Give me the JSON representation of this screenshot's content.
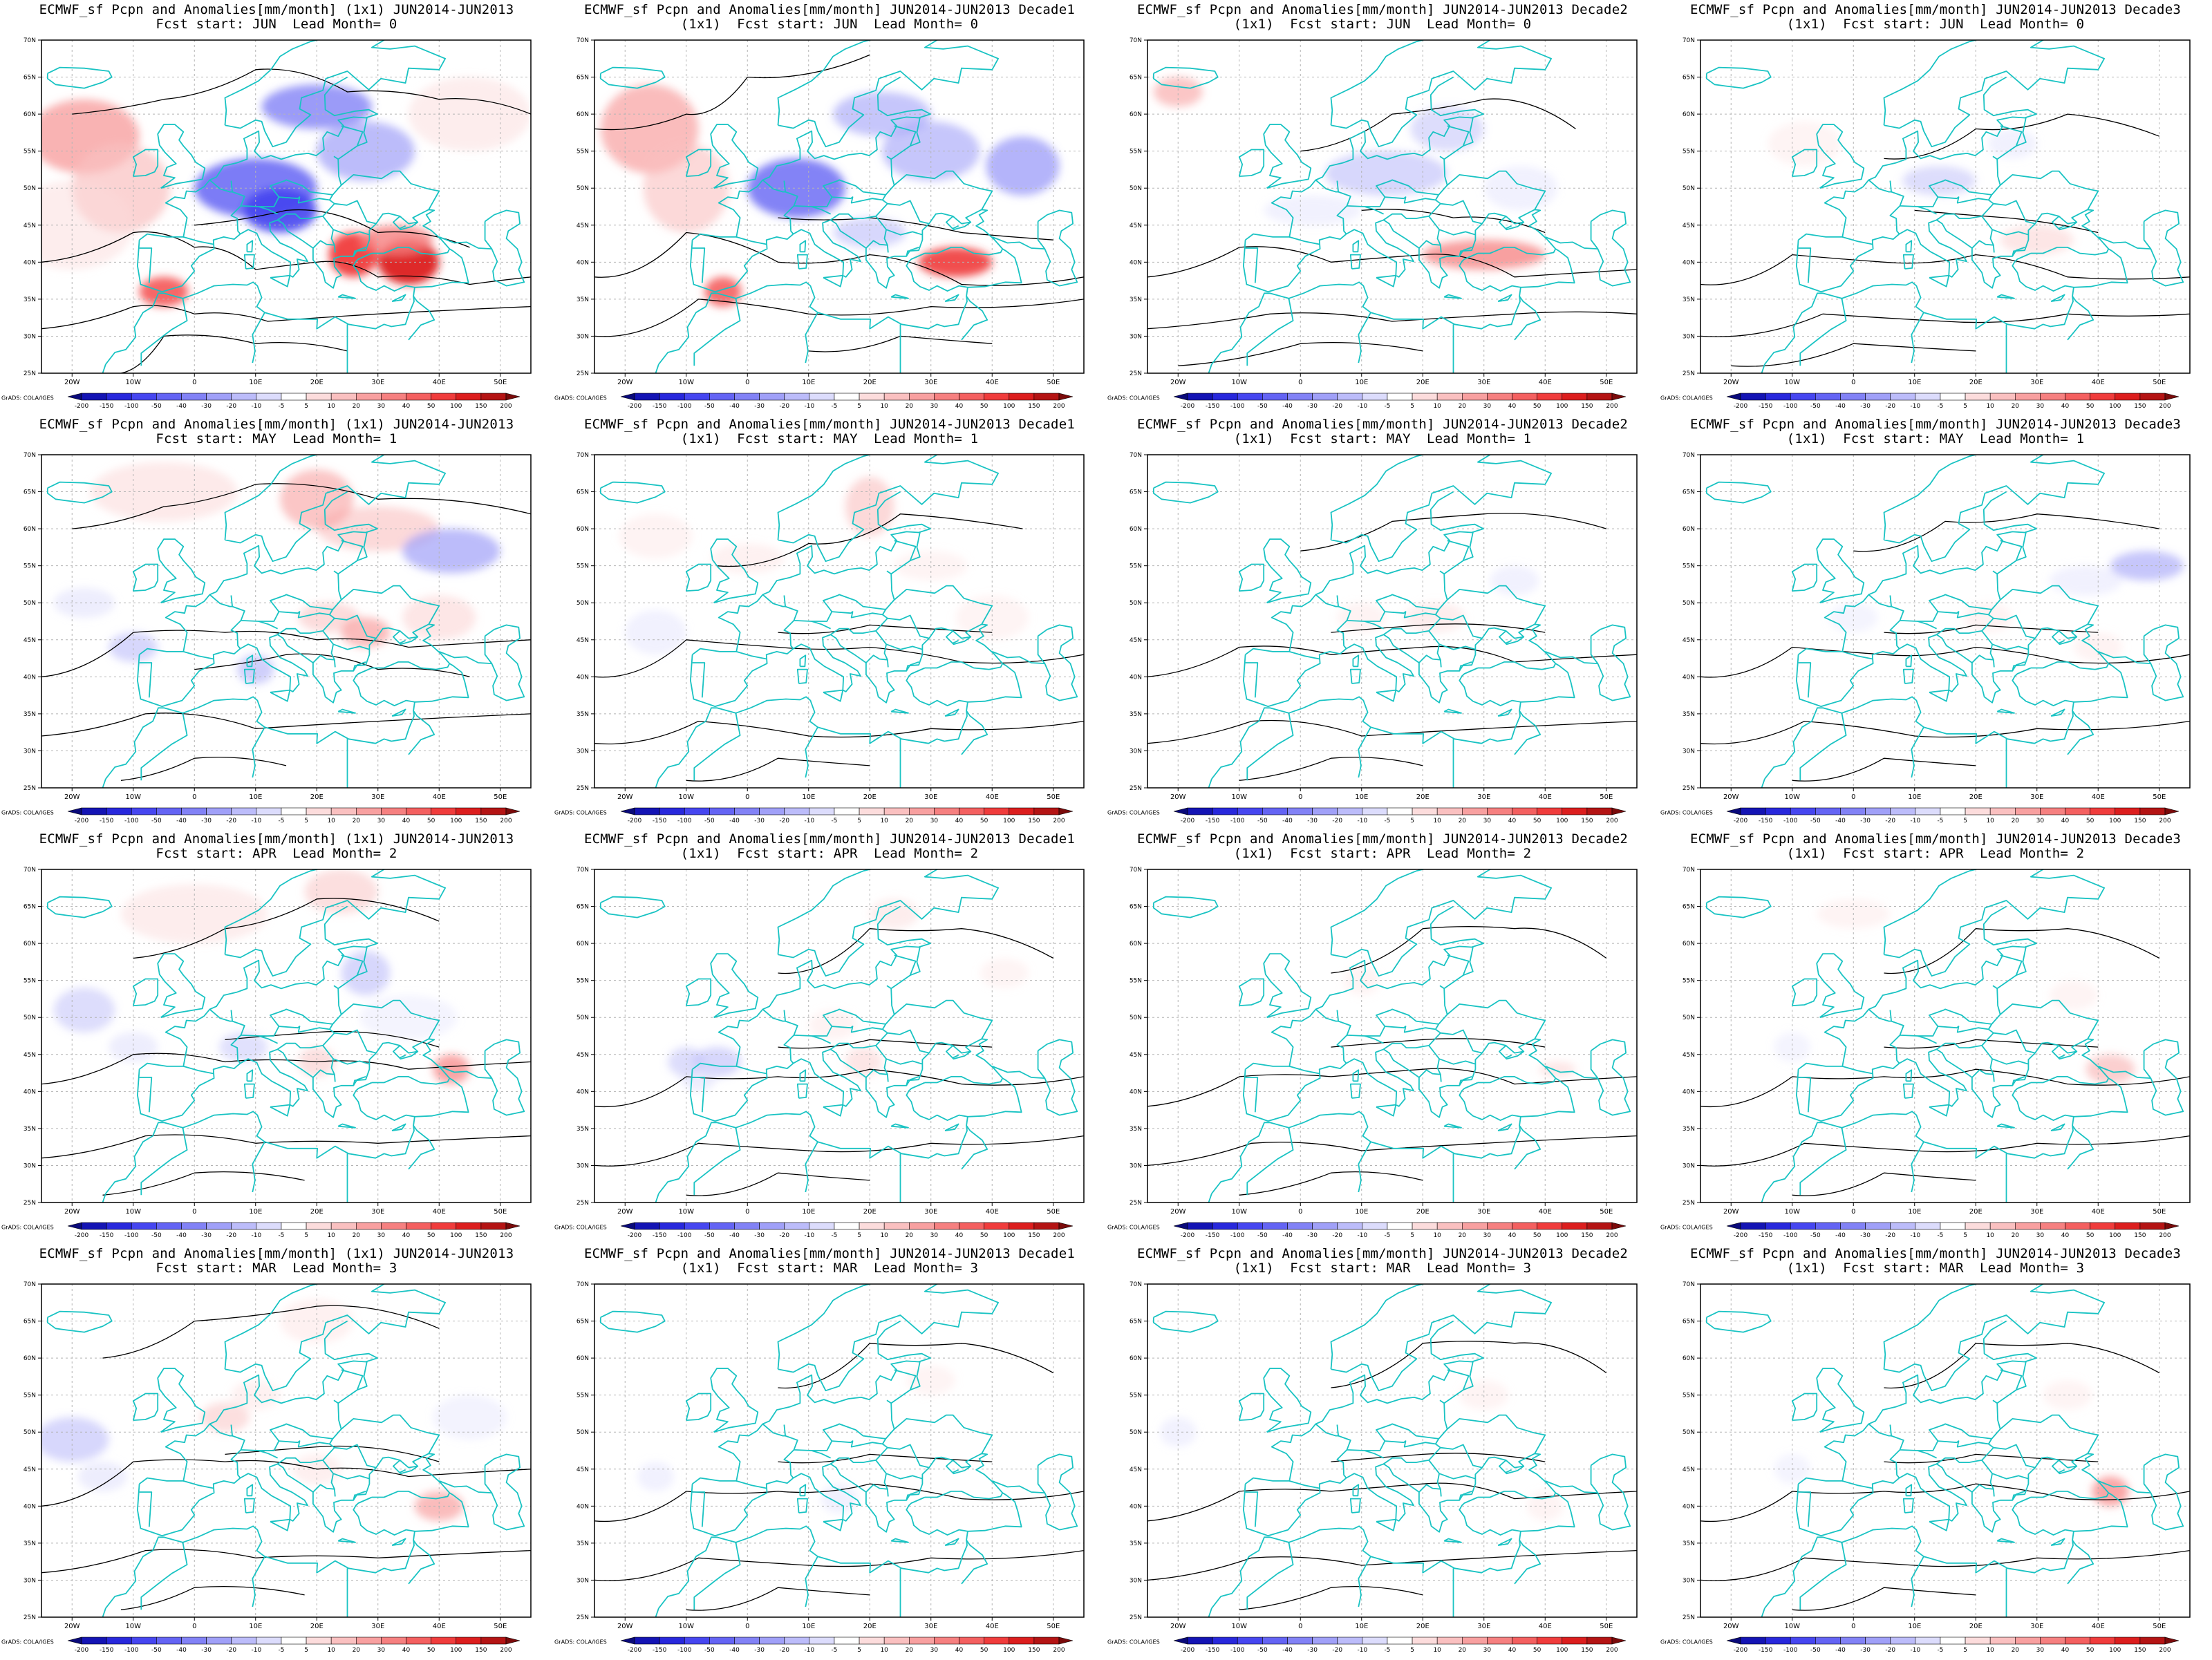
{
  "figure": {
    "title_prefix": "ECMWF_sf Pcpn and Anomalies[mm/month]",
    "period": "JUN2014-JUN2013",
    "grid": "(1x1)",
    "credit": "GrADS: COLA/IGES",
    "colorbar": {
      "labels": [
        "-200",
        "-150",
        "-100",
        "-50",
        "-40",
        "-30",
        "-20",
        "-10",
        "-5",
        "5",
        "10",
        "20",
        "30",
        "40",
        "50",
        "100",
        "150",
        "200"
      ],
      "colors": [
        "#0a0a7a",
        "#1414b4",
        "#2828dc",
        "#4646f0",
        "#6464f4",
        "#8282f6",
        "#a0a0f8",
        "#bcbcfa",
        "#dcdcfc",
        "#ffffff",
        "#fcdcdc",
        "#faC0c0",
        "#f8a0a0",
        "#f68080",
        "#f46060",
        "#f03c3c",
        "#dc1e1e",
        "#b41414",
        "#7a0a0a"
      ]
    },
    "lon_ticks": [
      "20W",
      "10W",
      "0",
      "10E",
      "20E",
      "30E",
      "40E",
      "50E"
    ],
    "lat_ticks": [
      "70N",
      "65N",
      "60N",
      "55N",
      "50N",
      "45N",
      "40N",
      "35N",
      "30N",
      "25N"
    ],
    "rows": [
      {
        "start": "JUN",
        "lead": "0"
      },
      {
        "start": "MAY",
        "lead": "1"
      },
      {
        "start": "APR",
        "lead": "2"
      },
      {
        "start": "MAR",
        "lead": "3"
      }
    ],
    "columns": [
      "",
      "Decade1",
      "Decade2",
      "Decade3"
    ],
    "panels": [
      {
        "line1": "ECMWF_sf Pcpn and Anomalies[mm/month] (1x1) JUN2014-JUN2013",
        "line2": "Fcst start: JUN  Lead Month= 0"
      },
      {
        "line1": "ECMWF_sf Pcpn and Anomalies[mm/month] JUN2014-JUN2013 Decade1",
        "line2": "(1x1)  Fcst start: JUN  Lead Month= 0"
      },
      {
        "line1": "ECMWF_sf Pcpn and Anomalies[mm/month] JUN2014-JUN2013 Decade2",
        "line2": "(1x1)  Fcst start: JUN  Lead Month= 0"
      },
      {
        "line1": "ECMWF_sf Pcpn and Anomalies[mm/month] JUN2014-JUN2013 Decade3",
        "line2": "(1x1)  Fcst start: JUN  Lead Month= 0"
      },
      {
        "line1": "ECMWF_sf Pcpn and Anomalies[mm/month] (1x1) JUN2014-JUN2013",
        "line2": "Fcst start: MAY  Lead Month= 1"
      },
      {
        "line1": "ECMWF_sf Pcpn and Anomalies[mm/month] JUN2014-JUN2013 Decade1",
        "line2": "(1x1)  Fcst start: MAY  Lead Month= 1"
      },
      {
        "line1": "ECMWF_sf Pcpn and Anomalies[mm/month] JUN2014-JUN2013 Decade2",
        "line2": "(1x1)  Fcst start: MAY  Lead Month= 1"
      },
      {
        "line1": "ECMWF_sf Pcpn and Anomalies[mm/month] JUN2014-JUN2013 Decade3",
        "line2": "(1x1)  Fcst start: MAY  Lead Month= 1"
      },
      {
        "line1": "ECMWF_sf Pcpn and Anomalies[mm/month] (1x1) JUN2014-JUN2013",
        "line2": "Fcst start: APR  Lead Month= 2"
      },
      {
        "line1": "ECMWF_sf Pcpn and Anomalies[mm/month] JUN2014-JUN2013 Decade1",
        "line2": "(1x1)  Fcst start: APR  Lead Month= 2"
      },
      {
        "line1": "ECMWF_sf Pcpn and Anomalies[mm/month] JUN2014-JUN2013 Decade2",
        "line2": "(1x1)  Fcst start: APR  Lead Month= 2"
      },
      {
        "line1": "ECMWF_sf Pcpn and Anomalies[mm/month] JUN2014-JUN2013 Decade3",
        "line2": "(1x1)  Fcst start: APR  Lead Month= 2"
      },
      {
        "line1": "ECMWF_sf Pcpn and Anomalies[mm/month] (1x1) JUN2014-JUN2013",
        "line2": "Fcst start: MAR  Lead Month= 3"
      },
      {
        "line1": "ECMWF_sf Pcpn and Anomalies[mm/month] JUN2014-JUN2013 Decade1",
        "line2": "(1x1)  Fcst start: MAR  Lead Month= 3"
      },
      {
        "line1": "ECMWF_sf Pcpn and Anomalies[mm/month] JUN2014-JUN2013 Decade2",
        "line2": "(1x1)  Fcst start: MAR  Lead Month= 3"
      },
      {
        "line1": "ECMWF_sf Pcpn and Anomalies[mm/month] JUN2014-JUN2013 Decade3",
        "line2": "(1x1)  Fcst start: MAR  Lead Month= 3"
      }
    ],
    "styles": {
      "coast_color": "#19c3c3",
      "contour_color": "#000000",
      "grid_line_color": "#b4b4b4"
    }
  }
}
